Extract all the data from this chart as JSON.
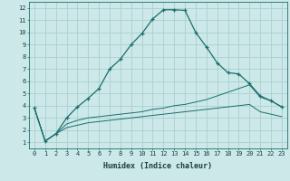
{
  "xlabel": "Humidex (Indice chaleur)",
  "background_color": "#cce8e8",
  "grid_color": "#aad0d0",
  "line_color": "#1a6e6e",
  "xlim": [
    -0.5,
    23.5
  ],
  "ylim": [
    0.5,
    12.5
  ],
  "yticks": [
    1,
    2,
    3,
    4,
    5,
    6,
    7,
    8,
    9,
    10,
    11,
    12
  ],
  "xticks": [
    0,
    1,
    2,
    3,
    4,
    5,
    6,
    7,
    8,
    9,
    10,
    11,
    12,
    13,
    14,
    15,
    16,
    17,
    18,
    19,
    20,
    21,
    22,
    23
  ],
  "series1_x": [
    0,
    1,
    2,
    3,
    4,
    5,
    6,
    7,
    8,
    9,
    10,
    11,
    12,
    13,
    14,
    15,
    16,
    17,
    18,
    19,
    20,
    21,
    22,
    23
  ],
  "series1_y": [
    3.8,
    1.1,
    1.7,
    3.0,
    3.9,
    4.6,
    5.4,
    7.0,
    7.8,
    9.0,
    9.9,
    11.1,
    11.85,
    11.85,
    11.8,
    10.0,
    8.8,
    7.5,
    6.7,
    6.6,
    5.8,
    4.8,
    4.4,
    3.9
  ],
  "series2_x": [
    0,
    1,
    2,
    3,
    4,
    5,
    6,
    7,
    8,
    9,
    10,
    11,
    12,
    13,
    14,
    15,
    16,
    17,
    18,
    19,
    20,
    21,
    22,
    23
  ],
  "series2_y": [
    3.8,
    1.1,
    1.7,
    2.5,
    2.8,
    3.0,
    3.1,
    3.2,
    3.3,
    3.4,
    3.5,
    3.7,
    3.8,
    4.0,
    4.1,
    4.3,
    4.5,
    4.8,
    5.1,
    5.4,
    5.7,
    4.7,
    4.4,
    3.9
  ],
  "series3_x": [
    0,
    1,
    2,
    3,
    4,
    5,
    6,
    7,
    8,
    9,
    10,
    11,
    12,
    13,
    14,
    15,
    16,
    17,
    18,
    19,
    20,
    21,
    22,
    23
  ],
  "series3_y": [
    3.8,
    1.1,
    1.7,
    2.2,
    2.4,
    2.6,
    2.7,
    2.8,
    2.9,
    3.0,
    3.1,
    3.2,
    3.3,
    3.4,
    3.5,
    3.6,
    3.7,
    3.8,
    3.9,
    4.0,
    4.1,
    3.5,
    3.3,
    3.1
  ],
  "tick_fontsize": 5.0,
  "xlabel_fontsize": 6.0
}
